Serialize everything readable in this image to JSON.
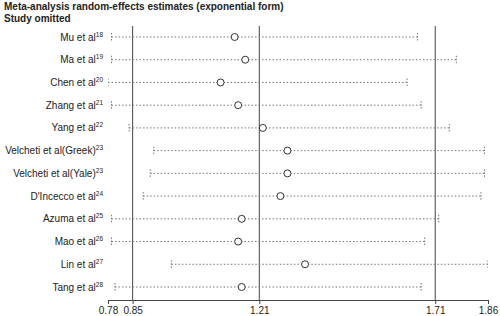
{
  "chart_data": {
    "type": "forest",
    "title": "Meta-analysis random-effects estimates (exponential form)",
    "subtitle": "Study omitted",
    "categories": [
      "Mu et al",
      "Ma et al",
      "Chen et al",
      "Zhang et al",
      "Yang et al",
      "Velcheti et al(Greek)",
      "Velcheti et al(Yale)",
      "D'Incecco et al",
      "Azuma et al",
      "Mao et al",
      "Lin et al",
      "Tang et al"
    ],
    "refs": [
      "18",
      "19",
      "20",
      "21",
      "22",
      "23",
      "23",
      "24",
      "25",
      "26",
      "27",
      "28"
    ],
    "values": [
      1.14,
      1.17,
      1.1,
      1.15,
      1.22,
      1.29,
      1.29,
      1.27,
      1.16,
      1.15,
      1.34,
      1.16
    ],
    "lower": [
      0.79,
      0.79,
      0.78,
      0.79,
      0.84,
      0.91,
      0.9,
      0.88,
      0.79,
      0.79,
      0.96,
      0.8
    ],
    "upper": [
      1.66,
      1.77,
      1.63,
      1.67,
      1.75,
      1.85,
      1.85,
      1.84,
      1.72,
      1.68,
      1.86,
      1.67
    ],
    "overall": {
      "lower": 0.85,
      "estimate": 1.21,
      "upper": 1.71
    },
    "xlim": [
      0.78,
      1.86
    ],
    "xticks": [
      0.78,
      0.85,
      1.21,
      1.71,
      1.86
    ],
    "marker": "circle",
    "line_style": "dotted",
    "color": "#333333"
  }
}
